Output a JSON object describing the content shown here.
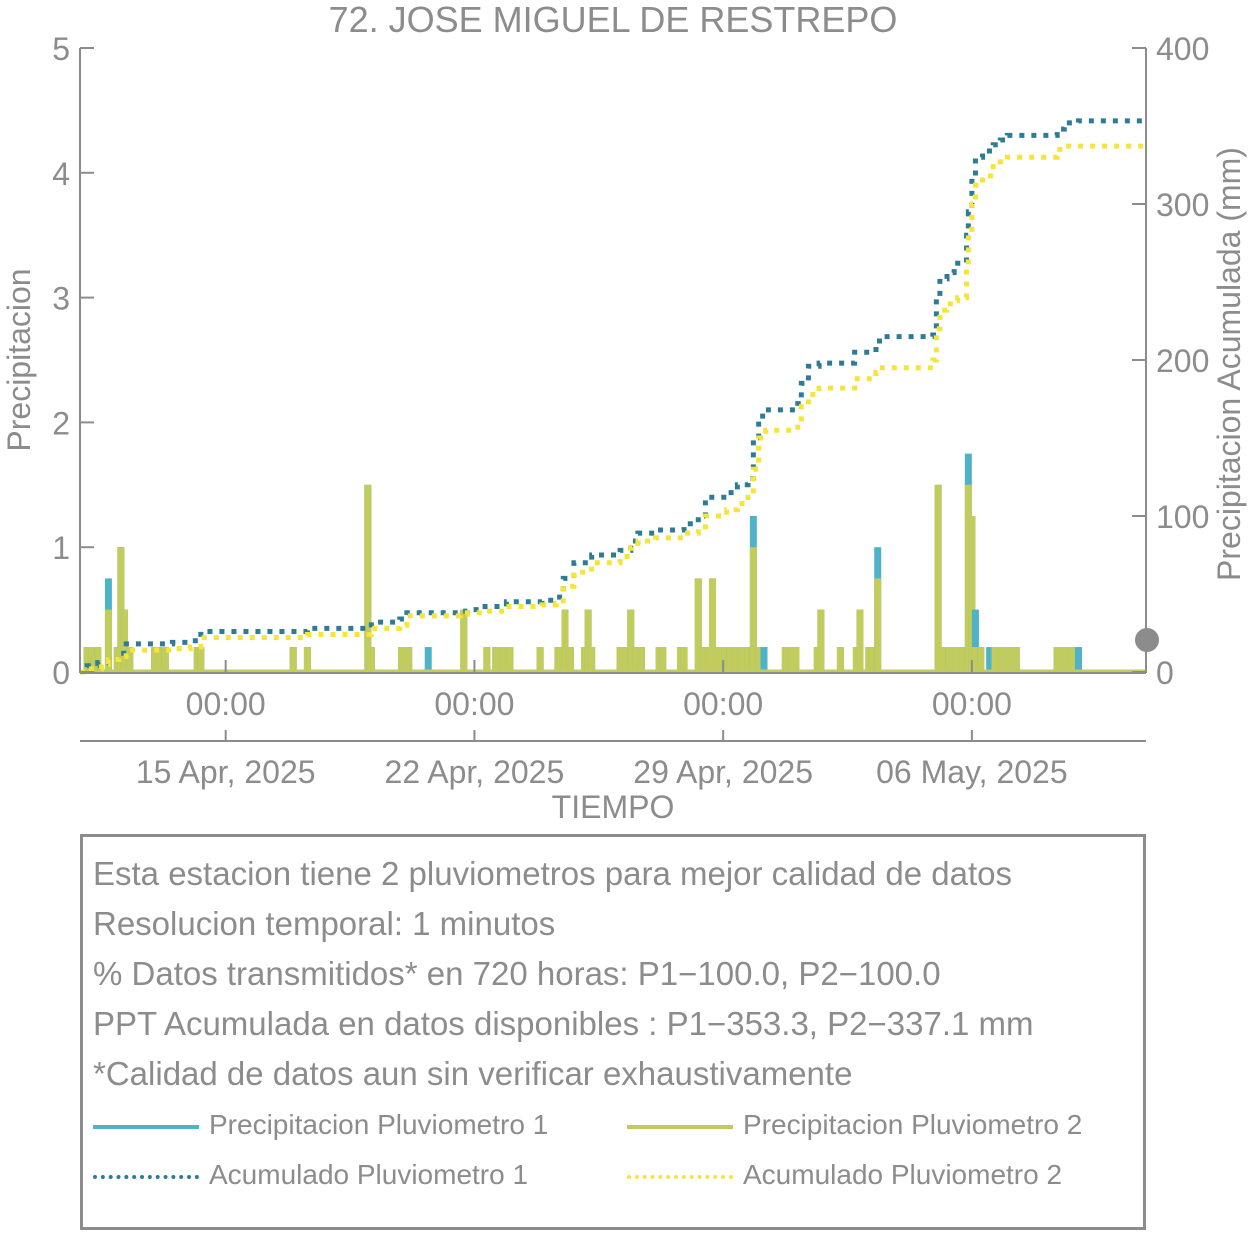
{
  "chart_data": {
    "type": "bar+line",
    "title": "72. JOSE MIGUEL DE RESTREPO",
    "xlabel": "TIEMPO",
    "ylabel_left": "Precipitacion",
    "ylabel_right": "Precipitacion Acumulada (mm)",
    "ylim_left": [
      0,
      5
    ],
    "ylim_right": [
      0,
      400
    ],
    "yticks_left": [
      "0",
      "1",
      "2",
      "3",
      "4",
      "5"
    ],
    "yticks_right": [
      "0",
      "100",
      "200",
      "300",
      "400"
    ],
    "time_ticks": [
      "00:00",
      "00:00",
      "00:00",
      "00:00"
    ],
    "date_ticks": [
      "15 Apr, 2025",
      "22 Apr, 2025",
      "29 Apr, 2025",
      "06 May, 2025"
    ],
    "x_range": [
      -4.1,
      25.9
    ],
    "x_ticks": [
      0,
      7,
      14,
      21
    ],
    "bars": {
      "series": [
        "Precipitacion Pluviometro 1",
        "Precipitacion Pluviometro 2"
      ],
      "points": [
        {
          "x": -3.9,
          "p1": 0.2,
          "p2": 0.2
        },
        {
          "x": -3.75,
          "p1": 0.2,
          "p2": 0.2
        },
        {
          "x": -3.6,
          "p1": 0.2,
          "p2": 0.2
        },
        {
          "x": -3.3,
          "p1": 0.75,
          "p2": 0.5
        },
        {
          "x": -3.05,
          "p1": 0.2,
          "p2": 0.2
        },
        {
          "x": -2.95,
          "p1": 1.0,
          "p2": 1.0
        },
        {
          "x": -2.85,
          "p1": 0.5,
          "p2": 0.5
        },
        {
          "x": -2.7,
          "p1": 0.2,
          "p2": 0.2
        },
        {
          "x": -2.0,
          "p1": 0.2,
          "p2": 0.2
        },
        {
          "x": -1.85,
          "p1": 0.2,
          "p2": 0.2
        },
        {
          "x": -1.7,
          "p1": 0.2,
          "p2": 0.2
        },
        {
          "x": -0.8,
          "p1": 0.2,
          "p2": 0.2
        },
        {
          "x": -0.7,
          "p1": 0.2,
          "p2": 0.2
        },
        {
          "x": 1.9,
          "p1": 0.2,
          "p2": 0.2
        },
        {
          "x": 2.3,
          "p1": 0.2,
          "p2": 0.2
        },
        {
          "x": 4.0,
          "p1": 1.5,
          "p2": 1.5
        },
        {
          "x": 4.1,
          "p1": 0.2,
          "p2": 0.2
        },
        {
          "x": 4.95,
          "p1": 0.2,
          "p2": 0.2
        },
        {
          "x": 5.15,
          "p1": 0.2,
          "p2": 0.2
        },
        {
          "x": 5.7,
          "p1": 0.2,
          "p2": 0.0
        },
        {
          "x": 6.7,
          "p1": 0.5,
          "p2": 0.5
        },
        {
          "x": 7.35,
          "p1": 0.2,
          "p2": 0.2
        },
        {
          "x": 7.6,
          "p1": 0.2,
          "p2": 0.2
        },
        {
          "x": 7.8,
          "p1": 0.2,
          "p2": 0.2
        },
        {
          "x": 8.0,
          "p1": 0.2,
          "p2": 0.2
        },
        {
          "x": 8.85,
          "p1": 0.2,
          "p2": 0.2
        },
        {
          "x": 9.35,
          "p1": 0.2,
          "p2": 0.2
        },
        {
          "x": 9.55,
          "p1": 0.5,
          "p2": 0.5
        },
        {
          "x": 9.7,
          "p1": 0.2,
          "p2": 0.2
        },
        {
          "x": 10.1,
          "p1": 0.2,
          "p2": 0.2
        },
        {
          "x": 10.2,
          "p1": 0.5,
          "p2": 0.5
        },
        {
          "x": 10.3,
          "p1": 0.2,
          "p2": 0.2
        },
        {
          "x": 11.1,
          "p1": 0.2,
          "p2": 0.2
        },
        {
          "x": 11.25,
          "p1": 0.2,
          "p2": 0.2
        },
        {
          "x": 11.4,
          "p1": 0.5,
          "p2": 0.5
        },
        {
          "x": 11.55,
          "p1": 0.2,
          "p2": 0.2
        },
        {
          "x": 11.7,
          "p1": 0.2,
          "p2": 0.2
        },
        {
          "x": 12.2,
          "p1": 0.2,
          "p2": 0.2
        },
        {
          "x": 12.3,
          "p1": 0.2,
          "p2": 0.2
        },
        {
          "x": 12.8,
          "p1": 0.2,
          "p2": 0.2
        },
        {
          "x": 12.9,
          "p1": 0.2,
          "p2": 0.2
        },
        {
          "x": 13.3,
          "p1": 0.75,
          "p2": 0.75
        },
        {
          "x": 13.45,
          "p1": 0.2,
          "p2": 0.2
        },
        {
          "x": 13.6,
          "p1": 0.2,
          "p2": 0.2
        },
        {
          "x": 13.7,
          "p1": 0.75,
          "p2": 0.75
        },
        {
          "x": 13.9,
          "p1": 0.2,
          "p2": 0.2
        },
        {
          "x": 14.05,
          "p1": 0.2,
          "p2": 0.2
        },
        {
          "x": 14.2,
          "p1": 0.2,
          "p2": 0.2
        },
        {
          "x": 14.35,
          "p1": 0.2,
          "p2": 0.2
        },
        {
          "x": 14.5,
          "p1": 0.2,
          "p2": 0.2
        },
        {
          "x": 14.7,
          "p1": 0.2,
          "p2": 0.2
        },
        {
          "x": 14.85,
          "p1": 1.25,
          "p2": 1.0
        },
        {
          "x": 15.0,
          "p1": 0.2,
          "p2": 0.2
        },
        {
          "x": 15.15,
          "p1": 0.2,
          "p2": 0.0
        },
        {
          "x": 15.75,
          "p1": 0.2,
          "p2": 0.2
        },
        {
          "x": 15.9,
          "p1": 0.2,
          "p2": 0.2
        },
        {
          "x": 16.05,
          "p1": 0.2,
          "p2": 0.2
        },
        {
          "x": 16.65,
          "p1": 0.2,
          "p2": 0.2
        },
        {
          "x": 16.75,
          "p1": 0.5,
          "p2": 0.5
        },
        {
          "x": 17.3,
          "p1": 0.2,
          "p2": 0.2
        },
        {
          "x": 17.75,
          "p1": 0.2,
          "p2": 0.2
        },
        {
          "x": 17.85,
          "p1": 0.5,
          "p2": 0.5
        },
        {
          "x": 18.1,
          "p1": 0.2,
          "p2": 0.2
        },
        {
          "x": 18.2,
          "p1": 0.2,
          "p2": 0.2
        },
        {
          "x": 18.35,
          "p1": 1.0,
          "p2": 0.75
        },
        {
          "x": 20.05,
          "p1": 1.5,
          "p2": 1.5
        },
        {
          "x": 20.2,
          "p1": 0.2,
          "p2": 0.2
        },
        {
          "x": 20.35,
          "p1": 0.2,
          "p2": 0.2
        },
        {
          "x": 20.55,
          "p1": 0.2,
          "p2": 0.2
        },
        {
          "x": 20.75,
          "p1": 0.2,
          "p2": 0.2
        },
        {
          "x": 20.9,
          "p1": 1.75,
          "p2": 1.5
        },
        {
          "x": 21.0,
          "p1": 1.25,
          "p2": 1.25
        },
        {
          "x": 21.1,
          "p1": 0.5,
          "p2": 0.2
        },
        {
          "x": 21.25,
          "p1": 0.2,
          "p2": 0.2
        },
        {
          "x": 21.5,
          "p1": 0.2,
          "p2": 0.0
        },
        {
          "x": 21.65,
          "p1": 0.2,
          "p2": 0.2
        },
        {
          "x": 21.85,
          "p1": 0.2,
          "p2": 0.2
        },
        {
          "x": 22.05,
          "p1": 0.2,
          "p2": 0.2
        },
        {
          "x": 22.25,
          "p1": 0.2,
          "p2": 0.2
        },
        {
          "x": 23.4,
          "p1": 0.2,
          "p2": 0.2
        },
        {
          "x": 23.6,
          "p1": 0.2,
          "p2": 0.2
        },
        {
          "x": 23.8,
          "p1": 0.2,
          "p2": 0.2
        },
        {
          "x": 24.0,
          "p1": 0.2,
          "p2": 0.0
        }
      ]
    },
    "accumulated": [
      {
        "name": "Acumulado Pluviometro 1",
        "points": [
          [
            -4.1,
            0
          ],
          [
            -3.9,
            4
          ],
          [
            -3.6,
            6
          ],
          [
            -3.3,
            8
          ],
          [
            -3.0,
            12
          ],
          [
            -2.8,
            18
          ],
          [
            -1.5,
            19
          ],
          [
            -1.0,
            20
          ],
          [
            -0.7,
            26
          ],
          [
            2.0,
            26
          ],
          [
            2.3,
            28
          ],
          [
            4.0,
            28
          ],
          [
            4.1,
            32
          ],
          [
            4.9,
            34
          ],
          [
            5.1,
            38
          ],
          [
            6.6,
            39
          ],
          [
            6.8,
            40
          ],
          [
            7.3,
            42
          ],
          [
            7.9,
            45
          ],
          [
            8.9,
            46
          ],
          [
            9.3,
            48
          ],
          [
            9.5,
            60
          ],
          [
            9.8,
            70
          ],
          [
            10.2,
            72
          ],
          [
            10.3,
            75
          ],
          [
            11.1,
            78
          ],
          [
            11.4,
            84
          ],
          [
            11.6,
            89
          ],
          [
            12.1,
            91
          ],
          [
            12.9,
            95
          ],
          [
            13.3,
            100
          ],
          [
            13.5,
            112
          ],
          [
            14.1,
            115
          ],
          [
            14.4,
            120
          ],
          [
            14.7,
            124
          ],
          [
            14.85,
            150
          ],
          [
            15.0,
            164
          ],
          [
            15.2,
            168
          ],
          [
            16.1,
            172
          ],
          [
            16.2,
            185
          ],
          [
            16.4,
            196
          ],
          [
            16.7,
            198
          ],
          [
            17.7,
            205
          ],
          [
            18.3,
            210
          ],
          [
            18.4,
            215
          ],
          [
            19.9,
            216
          ],
          [
            20.0,
            240
          ],
          [
            20.1,
            252
          ],
          [
            20.3,
            256
          ],
          [
            20.5,
            260
          ],
          [
            20.6,
            262
          ],
          [
            20.85,
            280
          ],
          [
            20.9,
            295
          ],
          [
            21.0,
            318
          ],
          [
            21.1,
            330
          ],
          [
            21.3,
            334
          ],
          [
            21.6,
            338
          ],
          [
            21.8,
            341
          ],
          [
            22.0,
            344
          ],
          [
            23.4,
            348
          ],
          [
            23.6,
            352
          ],
          [
            24.0,
            353.3
          ],
          [
            25.9,
            353.3
          ]
        ]
      },
      {
        "name": "Acumulado Pluviometro 2",
        "points": [
          [
            -4.1,
            0
          ],
          [
            -3.9,
            2
          ],
          [
            -3.5,
            5
          ],
          [
            -3.3,
            8
          ],
          [
            -3.0,
            10
          ],
          [
            -2.8,
            14
          ],
          [
            -1.5,
            15
          ],
          [
            -1.0,
            16
          ],
          [
            -0.7,
            22
          ],
          [
            2.0,
            22
          ],
          [
            2.3,
            24
          ],
          [
            4.0,
            24
          ],
          [
            4.1,
            28
          ],
          [
            4.9,
            30
          ],
          [
            5.1,
            36
          ],
          [
            6.6,
            37
          ],
          [
            6.8,
            38
          ],
          [
            7.3,
            39
          ],
          [
            7.9,
            42
          ],
          [
            8.9,
            43
          ],
          [
            9.3,
            44
          ],
          [
            9.5,
            55
          ],
          [
            9.8,
            64
          ],
          [
            10.2,
            66
          ],
          [
            10.3,
            70
          ],
          [
            11.1,
            74
          ],
          [
            11.4,
            80
          ],
          [
            11.6,
            84
          ],
          [
            12.1,
            86
          ],
          [
            12.9,
            89
          ],
          [
            13.3,
            93
          ],
          [
            13.5,
            100
          ],
          [
            14.1,
            104
          ],
          [
            14.4,
            108
          ],
          [
            14.7,
            112
          ],
          [
            14.85,
            130
          ],
          [
            15.0,
            150
          ],
          [
            15.2,
            155
          ],
          [
            16.1,
            160
          ],
          [
            16.2,
            170
          ],
          [
            16.4,
            178
          ],
          [
            16.7,
            182
          ],
          [
            17.7,
            188
          ],
          [
            18.3,
            192
          ],
          [
            18.4,
            195
          ],
          [
            19.9,
            200
          ],
          [
            20.0,
            220
          ],
          [
            20.1,
            232
          ],
          [
            20.3,
            236
          ],
          [
            20.5,
            238
          ],
          [
            20.6,
            240
          ],
          [
            20.85,
            260
          ],
          [
            20.9,
            280
          ],
          [
            21.0,
            300
          ],
          [
            21.1,
            312
          ],
          [
            21.3,
            318
          ],
          [
            21.6,
            324
          ],
          [
            21.8,
            327
          ],
          [
            22.0,
            330
          ],
          [
            23.4,
            335
          ],
          [
            23.6,
            337.1
          ],
          [
            25.9,
            337.1
          ]
        ]
      }
    ],
    "colors": {
      "p1": "#4fb3c8",
      "p2": "#c2cc5c",
      "acc1": "#2e7b95",
      "acc2": "#f5e43a",
      "axis": "#8c8c8c",
      "marker": "#8c8c8c"
    }
  },
  "info": {
    "lines": [
      "Esta estacion tiene 2 pluviometros para mejor calidad de datos",
      "Resolucion temporal: 1 minutos",
      "% Datos transmitidos* en 720 horas: P1−100.0, P2−100.0",
      "PPT Acumulada en datos disponibles : P1−353.3, P2−337.1 mm",
      "*Calidad de datos aun sin verificar exhaustivamente"
    ]
  },
  "legend": {
    "p1": "Precipitacion Pluviometro 1",
    "p2": "Precipitacion Pluviometro 2",
    "acc1": "Acumulado Pluviometro 1",
    "acc2": "Acumulado Pluviometro 2"
  }
}
